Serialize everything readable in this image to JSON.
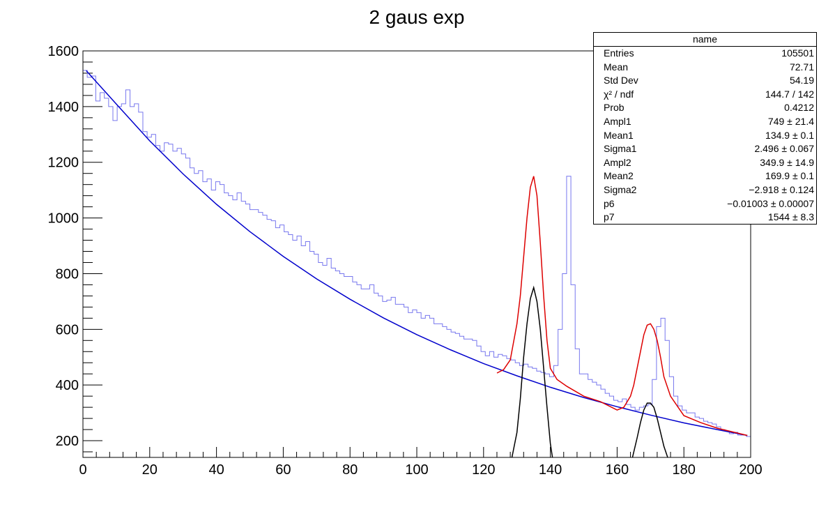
{
  "chart_data": {
    "type": "histogram",
    "title": "2 gaus exp",
    "xlim": [
      0,
      200
    ],
    "ylim": [
      140,
      1600
    ],
    "x_ticks": [
      0,
      20,
      40,
      60,
      80,
      100,
      120,
      140,
      160,
      180,
      200
    ],
    "y_ticks": [
      200,
      400,
      600,
      800,
      1000,
      1200,
      1400,
      1600
    ],
    "bin_width": 1.3333,
    "histogram": {
      "color": "#7777ee",
      "values": [
        1530,
        1505,
        1510,
        1420,
        1450,
        1430,
        1400,
        1350,
        1400,
        1410,
        1460,
        1400,
        1410,
        1380,
        1310,
        1290,
        1300,
        1260,
        1240,
        1270,
        1265,
        1240,
        1250,
        1230,
        1215,
        1180,
        1160,
        1170,
        1130,
        1140,
        1100,
        1130,
        1120,
        1090,
        1080,
        1065,
        1090,
        1060,
        1050,
        1030,
        1030,
        1020,
        1010,
        995,
        990,
        965,
        975,
        950,
        940,
        920,
        935,
        900,
        915,
        880,
        870,
        840,
        830,
        855,
        820,
        810,
        800,
        790,
        790,
        770,
        760,
        745,
        745,
        760,
        730,
        720,
        700,
        705,
        715,
        690,
        690,
        680,
        660,
        670,
        660,
        640,
        650,
        640,
        620,
        620,
        610,
        600,
        590,
        585,
        575,
        565,
        565,
        560,
        540,
        520,
        505,
        520,
        500,
        510,
        505,
        495,
        490,
        480,
        470,
        475,
        465,
        460,
        450,
        445,
        440,
        430,
        470,
        600,
        800,
        1150,
        760,
        530,
        440,
        440,
        420,
        410,
        400,
        385,
        370,
        360,
        345,
        340,
        350,
        330,
        320,
        310,
        320,
        325,
        330,
        420,
        610,
        640,
        560,
        430,
        360,
        325,
        310,
        300,
        300,
        285,
        280,
        270,
        265,
        260,
        250,
        240,
        235,
        225,
        230,
        220,
        220,
        215
      ]
    },
    "curves": [
      {
        "name": "",
        "color": "#0000cc",
        "x": [
          1,
          10,
          20,
          30,
          40,
          50,
          60,
          70,
          80,
          90,
          100,
          110,
          120,
          130,
          140,
          150,
          160,
          170,
          180,
          190,
          199
        ],
        "y": [
          1529,
          1409,
          1277,
          1158,
          1049,
          951,
          862,
          781,
          708,
          641,
          581,
          527,
          477,
          433,
          392,
          355,
          322,
          292,
          264,
          240,
          219
        ]
      },
      {
        "name": "",
        "color": "#dd0000",
        "x": [
          124,
          126,
          128,
          130,
          131,
          132,
          133,
          134,
          135,
          136,
          137,
          138,
          139,
          140,
          142,
          145,
          150,
          155,
          160,
          162,
          164,
          165,
          166,
          167,
          168,
          169,
          170,
          171,
          172,
          173,
          174,
          176,
          180,
          185,
          190,
          199
        ],
        "y": [
          443,
          455,
          490,
          620,
          720,
          860,
          1000,
          1110,
          1150,
          1080,
          910,
          720,
          560,
          460,
          420,
          395,
          360,
          340,
          310,
          320,
          360,
          400,
          460,
          520,
          580,
          615,
          620,
          600,
          560,
          500,
          430,
          360,
          290,
          265,
          245,
          219
        ]
      },
      {
        "name": "",
        "color": "#000000",
        "x": [
          128,
          130,
          131,
          132,
          133,
          134,
          135,
          136,
          137,
          138,
          139,
          140,
          141
        ],
        "y": [
          110,
          230,
          350,
          500,
          620,
          710,
          750,
          700,
          600,
          460,
          320,
          190,
          110
        ]
      },
      {
        "name": "",
        "color": "#000000",
        "x": [
          164,
          166,
          167,
          168,
          169,
          170,
          171,
          172,
          173,
          174,
          176
        ],
        "y": [
          110,
          210,
          265,
          310,
          335,
          335,
          320,
          280,
          230,
          180,
          110
        ]
      }
    ]
  },
  "stats": {
    "title": "name",
    "rows": [
      {
        "key": "Entries",
        "value": "105501"
      },
      {
        "key": "Mean",
        "value": "72.71"
      },
      {
        "key": "Std Dev",
        "value": "54.19"
      },
      {
        "key": "χ² / ndf",
        "value": "144.7 / 142"
      },
      {
        "key": "Prob",
        "value": "0.4212"
      },
      {
        "key": "Ampl1",
        "value": "749 ± 21.4"
      },
      {
        "key": "Mean1",
        "value": "134.9 ± 0.1"
      },
      {
        "key": "Sigma1",
        "value": "2.496 ± 0.067"
      },
      {
        "key": "Ampl2",
        "value": "349.9 ± 14.9"
      },
      {
        "key": "Mean2",
        "value": "169.9 ± 0.1"
      },
      {
        "key": "Sigma2",
        "value": "−2.918 ± 0.124"
      },
      {
        "key": "p6",
        "value": "−0.01003 ± 0.00007"
      },
      {
        "key": "p7",
        "value": "1544 ± 8.3"
      }
    ]
  }
}
